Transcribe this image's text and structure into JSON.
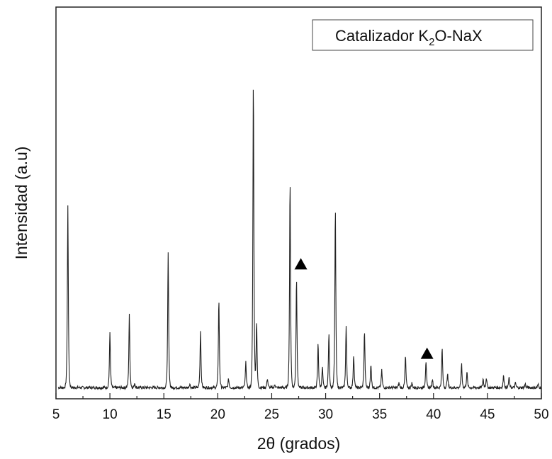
{
  "chart_data": {
    "type": "line",
    "xlabel": "2θ (grados)",
    "ylabel": "Intensidad (a.u)",
    "xlim": [
      5,
      50
    ],
    "ylim": [
      0,
      100
    ],
    "x_ticks": [
      "5",
      "10",
      "15",
      "20",
      "25",
      "30",
      "35",
      "40",
      "45",
      "50"
    ],
    "legend": {
      "prefix": "Catalizador K",
      "subscript": "2",
      "suffix": "O-NaX",
      "position": "top-right"
    },
    "grid": false,
    "baseline": 1.3,
    "series": [
      {
        "color": "#222222",
        "peaks": [
          [
            6.1,
            57.5
          ],
          [
            10.0,
            17.5
          ],
          [
            11.8,
            23.0
          ],
          [
            12.3,
            1.5
          ],
          [
            15.4,
            42.5
          ],
          [
            17.4,
            1.2
          ],
          [
            18.4,
            18.0
          ],
          [
            20.1,
            28.0
          ],
          [
            21.0,
            2.8
          ],
          [
            22.6,
            8.0
          ],
          [
            23.3,
            98.0
          ],
          [
            23.6,
            21.0
          ],
          [
            24.6,
            3.0
          ],
          [
            25.3,
            1.0
          ],
          [
            26.7,
            65.5
          ],
          [
            27.3,
            35.0
          ],
          [
            29.3,
            14.0
          ],
          [
            29.7,
            6.5
          ],
          [
            30.3,
            17.0
          ],
          [
            30.9,
            57.0
          ],
          [
            31.9,
            19.5
          ],
          [
            32.6,
            10.5
          ],
          [
            33.6,
            18.0
          ],
          [
            34.2,
            7.5
          ],
          [
            35.2,
            5.5
          ],
          [
            36.8,
            1.5
          ],
          [
            37.4,
            10.0
          ],
          [
            38.0,
            1.5
          ],
          [
            39.3,
            8.5
          ],
          [
            39.9,
            2.8
          ],
          [
            40.8,
            12.5
          ],
          [
            41.3,
            4.5
          ],
          [
            42.6,
            7.5
          ],
          [
            43.1,
            5.0
          ],
          [
            44.6,
            2.8
          ],
          [
            44.9,
            3.2
          ],
          [
            46.5,
            4.0
          ],
          [
            47.0,
            3.2
          ],
          [
            47.6,
            1.5
          ],
          [
            48.5,
            1.2
          ],
          [
            49.7,
            1.0
          ]
        ]
      }
    ],
    "markers": [
      {
        "symbol": "triangle",
        "x": 27.7,
        "y": 40.5
      },
      {
        "symbol": "triangle",
        "x": 39.4,
        "y": 12.2
      }
    ]
  }
}
